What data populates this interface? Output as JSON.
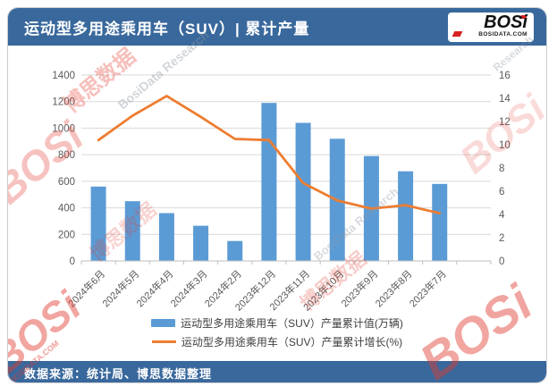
{
  "header": {
    "title": "运动型多用途乘用车（SUV）| 累计产量",
    "logo_text": "BOSi",
    "logo_domain": "BOSIDATA.COM"
  },
  "footer": {
    "source": "数据来源：统计局、博思数据整理"
  },
  "colors": {
    "header_bg": "#39689C",
    "footer_bg": "#39689C",
    "bar": "#5B9BD5",
    "line": "#ED7D31",
    "grid": "#D9D9D9",
    "axis_line": "#BFBFBF",
    "axis_text": "#595959"
  },
  "chart_data": {
    "type": "bar",
    "title": "运动型多用途乘用车（SUV）累计产量",
    "categories": [
      "2024年6月",
      "2024年5月",
      "2024年4月",
      "2024年3月",
      "2024年2月",
      "2023年12月",
      "2023年11月",
      "2023年10月",
      "2023年9月",
      "2023年8月",
      "2023年7月"
    ],
    "series": [
      {
        "name": "运动型多用途乘用车（SUV）产量累计值(万辆)",
        "type": "bar",
        "axis": "left",
        "values": [
          560,
          450,
          360,
          265,
          150,
          1190,
          1040,
          920,
          790,
          675,
          580
        ]
      },
      {
        "name": "运动型多用途乘用车（SUV）产量累计增长(%)",
        "type": "line",
        "axis": "right",
        "values": [
          10.4,
          12.5,
          14.2,
          12.4,
          10.5,
          10.4,
          6.7,
          5.2,
          4.5,
          4.8,
          4.1
        ]
      }
    ],
    "left_axis": {
      "min": 0,
      "max": 1400,
      "step": 200,
      "ticks": [
        0,
        200,
        400,
        600,
        800,
        1000,
        1200,
        1400
      ]
    },
    "right_axis": {
      "min": 0,
      "max": 16,
      "step": 2,
      "ticks": [
        0,
        2,
        4,
        6,
        8,
        10,
        12,
        14,
        16
      ]
    },
    "grid": true,
    "legend_position": "bottom"
  },
  "watermarks": [
    "博思数据",
    "BosiData Research",
    "BOSi",
    "博思数据",
    "BosiData Research",
    "BOSi",
    "博思数据",
    "BOSi",
    "BOSIDATA.COM",
    "BOSi",
    "Research"
  ]
}
